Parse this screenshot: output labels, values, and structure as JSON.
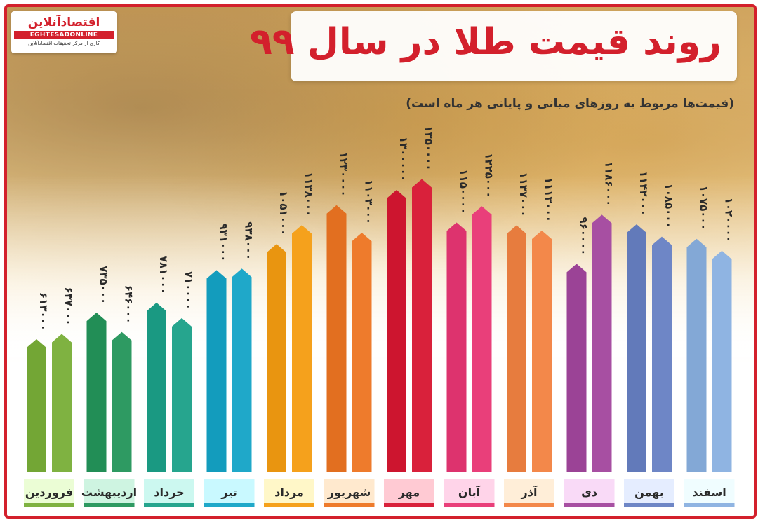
{
  "header": {
    "logo_text": "اقتصادآنلاین",
    "logo_latin": "EGHTESADONLINE",
    "logo_tagline": "کاری از مرکز تحقیقات اقتصادآنلاین",
    "title": "روند قیمت طلا در سال ۹۹",
    "subtitle": "(قیمت‌ها مربوط به روزهای میانی و پایانی هر ماه است)"
  },
  "chart_data": {
    "type": "bar",
    "title": "روند قیمت طلا در سال ۹۹",
    "subtitle": "(قیمت‌ها مربوط به روزهای میانی و پایانی هر ماه است)",
    "categories": [
      "فروردین",
      "اردیبهشت",
      "خرداد",
      "تیر",
      "مرداد",
      "شهریور",
      "مهر",
      "آبان",
      "آذر",
      "دی",
      "بهمن",
      "اسفند"
    ],
    "series": [
      {
        "values": [
          613000,
          735000,
          781000,
          931000,
          1051000,
          1230000,
          1300000,
          1150000,
          1137000,
          960000,
          1142000,
          1075000
        ]
      },
      {
        "values": [
          637000,
          646000,
          710000,
          938000,
          1138000,
          1103000,
          1350000,
          1225000,
          1113000,
          1186000,
          1085000,
          1020000
        ]
      }
    ],
    "value_labels": [
      [
        "۶۱۳۰۰۰",
        "۷۳۵۰۰۰",
        "۷۸۱۰۰۰",
        "۹۳۱۰۰۰",
        "۱۰۵۱۰۰۰",
        "۱۲۳۰۰۰۰",
        "۱۳۰۰۰۰۰",
        "۱۱۵۰۰۰۰",
        "۱۱۳۷۰۰۰",
        "۹۶۰۰۰۰",
        "۱۱۴۲۰۰۰",
        "۱۰۷۵۰۰۰"
      ],
      [
        "۶۳۷۰۰۰",
        "۶۴۶۰۰۰",
        "۷۱۰۰۰۰",
        "۹۳۸۰۰۰",
        "۱۱۳۸۰۰۰",
        "۱۱۰۳۰۰۰",
        "۱۳۵۰۰۰۰",
        "۱۲۲۵۰۰۰",
        "۱۱۱۳۰۰۰",
        "۱۱۸۶۰۰۰",
        "۱۰۸۵۰۰۰",
        "۱۰۲۰۰۰۰"
      ]
    ],
    "colors": [
      "#7fb241",
      "#2e9a62",
      "#26a58e",
      "#1fa8c9",
      "#f5a11c",
      "#ee7b2c",
      "#d9213b",
      "#e93f7a",
      "#f3884a",
      "#a74fa2",
      "#6e86c6",
      "#8fb4e2"
    ],
    "ylim": [
      0,
      1400000
    ],
    "grid": false,
    "legend": "none",
    "direction": "rtl"
  }
}
